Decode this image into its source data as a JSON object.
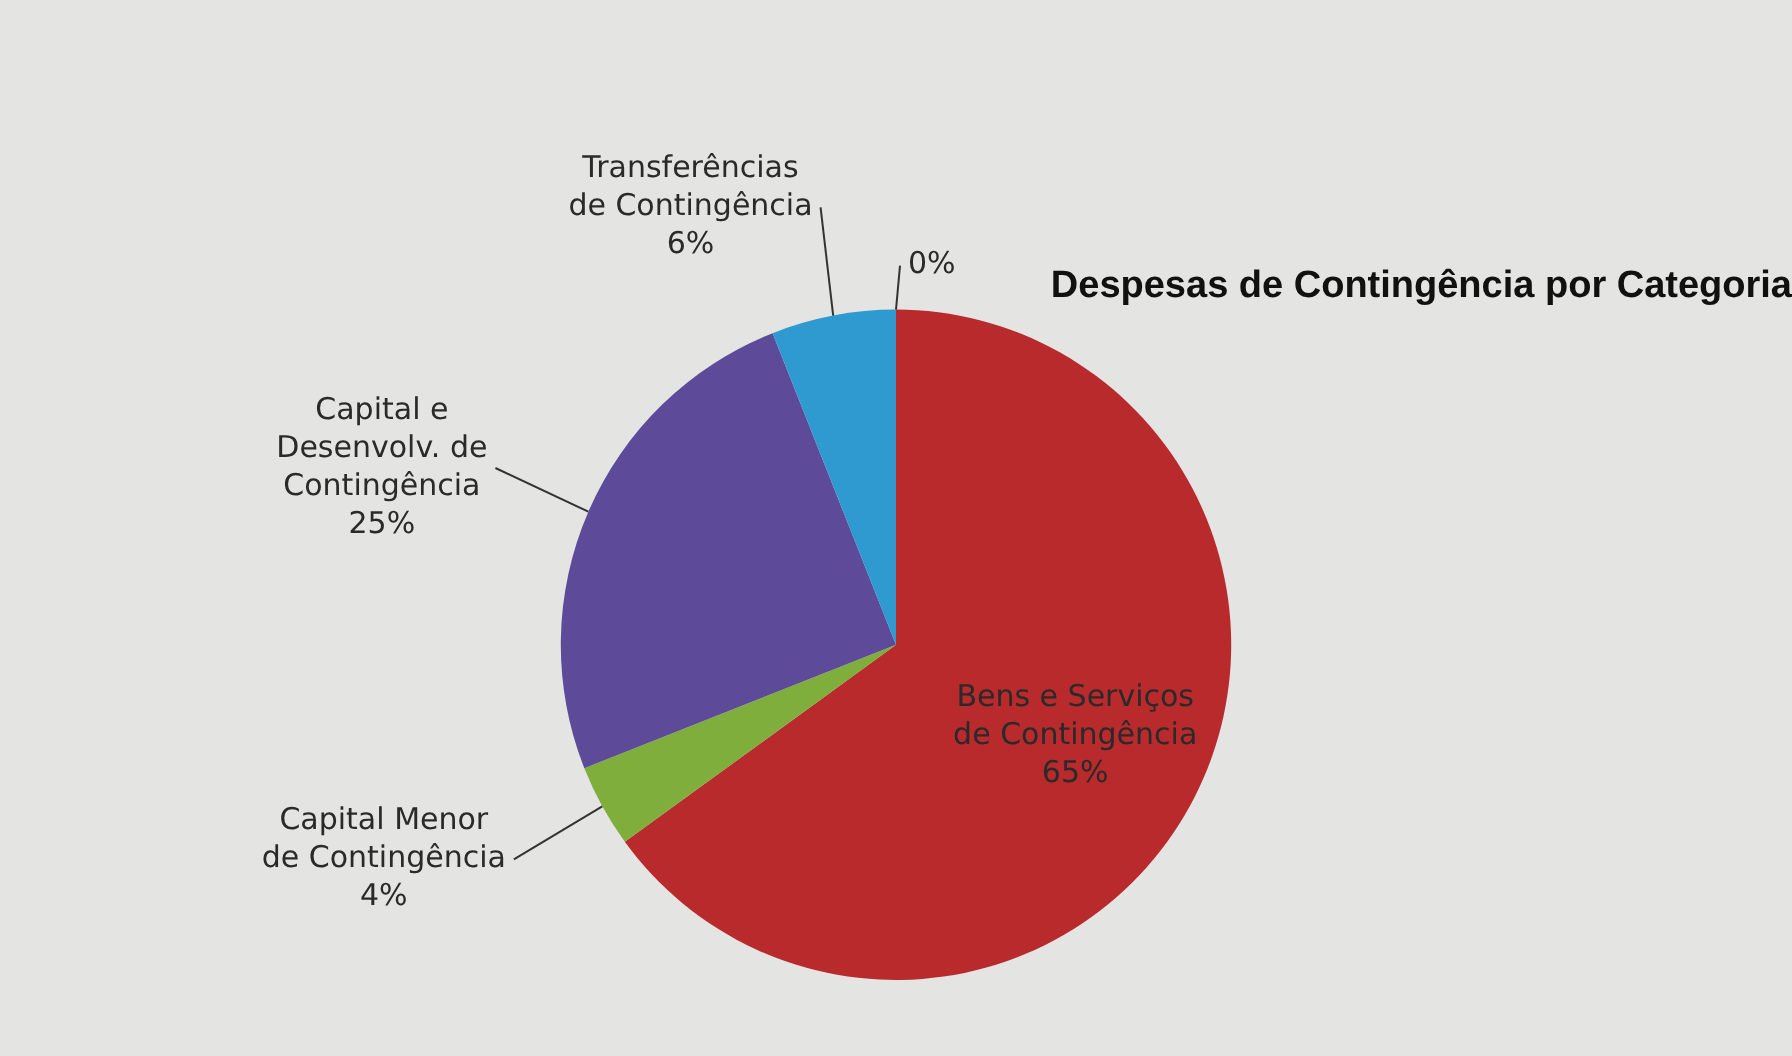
{
  "chart_data": {
    "type": "pie",
    "title": "Despesas de Contingência por Categoria",
    "categories": [
      "Bens e Serviços de Contingência",
      "Capital Menor de Contingência",
      "Capital e Desenvolv. de Contingência",
      "Transferências de Contingência",
      null
    ],
    "values": [
      65,
      4,
      25,
      6,
      0
    ],
    "value_labels": [
      "65%",
      "4%",
      "25%",
      "6%",
      "0%"
    ],
    "colors": [
      "#b92a2c",
      "#7fae3c",
      "#5d4b99",
      "#2f9ad0",
      "#e07b20"
    ],
    "legend": false
  }
}
